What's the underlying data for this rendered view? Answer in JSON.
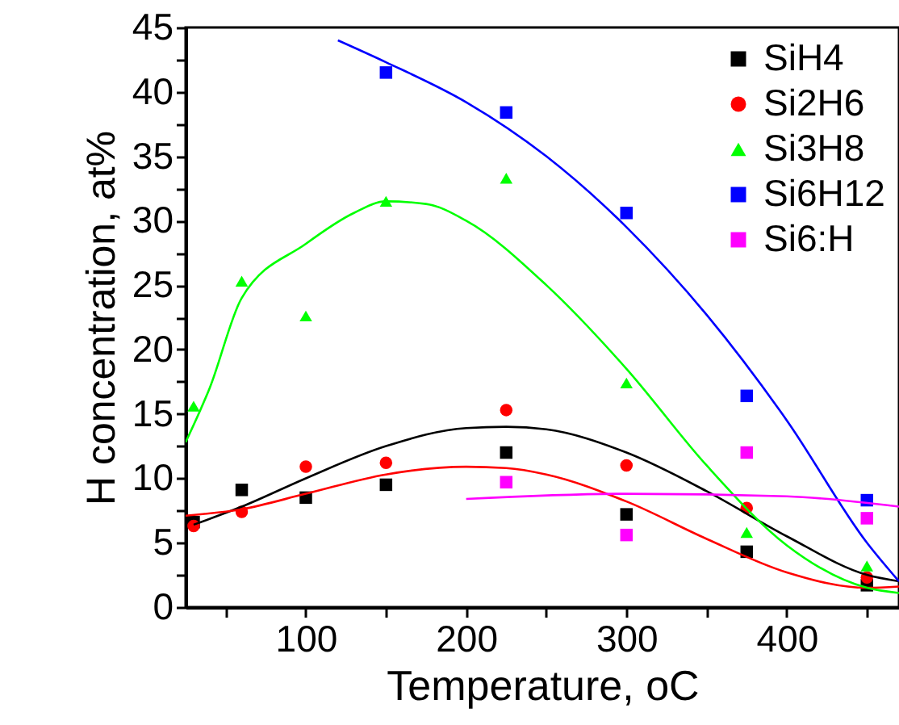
{
  "chart_data": {
    "type": "scatter",
    "xlabel": "Temperature, oC",
    "ylabel": "H concentration, at%",
    "xlim": [
      25,
      470
    ],
    "ylim": [
      0,
      45
    ],
    "xticks": [
      {
        "value": 50,
        "label": null
      },
      100,
      {
        "value": 150,
        "label": null
      },
      200,
      {
        "value": 250,
        "label": null
      },
      300,
      {
        "value": 350,
        "label": null
      },
      400,
      {
        "value": 450,
        "label": null
      }
    ],
    "yticks": [
      0,
      {
        "value": 2.5,
        "label": null
      },
      5,
      {
        "value": 7.5,
        "label": null
      },
      10,
      {
        "value": 12.5,
        "label": null
      },
      15,
      {
        "value": 17.5,
        "label": null
      },
      20,
      {
        "value": 22.5,
        "label": null
      },
      25,
      {
        "value": 27.5,
        "label": null
      },
      30,
      {
        "value": 32.5,
        "label": null
      },
      35,
      {
        "value": 37.5,
        "label": null
      },
      40,
      {
        "value": 42.5,
        "label": null
      },
      45
    ],
    "grid": false,
    "legend": "top right",
    "series": [
      {
        "name": "SiH4",
        "color": "#000000",
        "marker": "square",
        "x": [
          30,
          60,
          100,
          150,
          225,
          300,
          375,
          450
        ],
        "values": [
          6.6,
          9.1,
          8.5,
          9.5,
          12,
          7.2,
          4.3,
          1.7
        ]
      },
      {
        "name": "Si2H6",
        "color": "#ff0000",
        "marker": "circle",
        "x": [
          30,
          60,
          100,
          150,
          225,
          300,
          375,
          450
        ],
        "values": [
          6.3,
          7.4,
          10.9,
          11.2,
          15.3,
          11,
          7.7,
          2.3
        ]
      },
      {
        "name": "Si3H8",
        "color": "#00ff00",
        "marker": "triangle",
        "x": [
          30,
          60,
          100,
          150,
          225,
          300,
          375,
          450
        ],
        "values": [
          15.6,
          25.3,
          22.6,
          31.5,
          33.3,
          17.4,
          5.8,
          3.2
        ]
      },
      {
        "name": "Si6H12",
        "color": "#0000ff",
        "marker": "square",
        "x": [
          150,
          225,
          300,
          375,
          450
        ],
        "values": [
          41.5,
          38.4,
          30.6,
          16.4,
          8.3
        ]
      },
      {
        "name": "Si6:H",
        "color": "#ff00ff",
        "marker": "square",
        "x": [
          225,
          300,
          375,
          450
        ],
        "values": [
          9.7,
          5.6,
          12,
          6.9
        ]
      },
      {
        "type": "line",
        "color": "#000000",
        "marker": "none",
        "x": [
          30,
          60,
          100,
          150,
          200,
          225,
          250,
          300,
          350,
          400,
          450,
          470
        ],
        "values": [
          6.4,
          7.8,
          10,
          12.5,
          13.9,
          14,
          13.8,
          12,
          9,
          5.5,
          2.5,
          2
        ]
      },
      {
        "type": "line",
        "color": "#ff0000",
        "marker": "none",
        "x": [
          25,
          60,
          100,
          150,
          200,
          225,
          250,
          300,
          350,
          400,
          450,
          470
        ],
        "values": [
          7.1,
          7.6,
          8.8,
          10.3,
          10.9,
          10.8,
          10.3,
          8.2,
          5.3,
          2.7,
          1.5,
          1.6
        ]
      },
      {
        "type": "line",
        "color": "#00ff00",
        "marker": "none",
        "x": [
          25,
          40,
          60,
          100,
          130,
          150,
          175,
          200,
          250,
          300,
          350,
          400,
          450,
          470
        ],
        "values": [
          12.8,
          17,
          24,
          28.2,
          30.6,
          31.5,
          31.3,
          30,
          25,
          18.5,
          11,
          4.8,
          1.5,
          1.1
        ]
      },
      {
        "type": "line",
        "color": "#0000ff",
        "marker": "none",
        "x": [
          120,
          150,
          200,
          250,
          300,
          350,
          400,
          450,
          470
        ],
        "values": [
          44,
          42.3,
          39.2,
          35,
          29.5,
          22.7,
          14.5,
          5,
          2
        ]
      },
      {
        "type": "line",
        "color": "#ff00ff",
        "marker": "none",
        "x": [
          200,
          300,
          400,
          470
        ],
        "values": [
          8.4,
          8.8,
          8.6,
          7.8
        ]
      }
    ]
  }
}
